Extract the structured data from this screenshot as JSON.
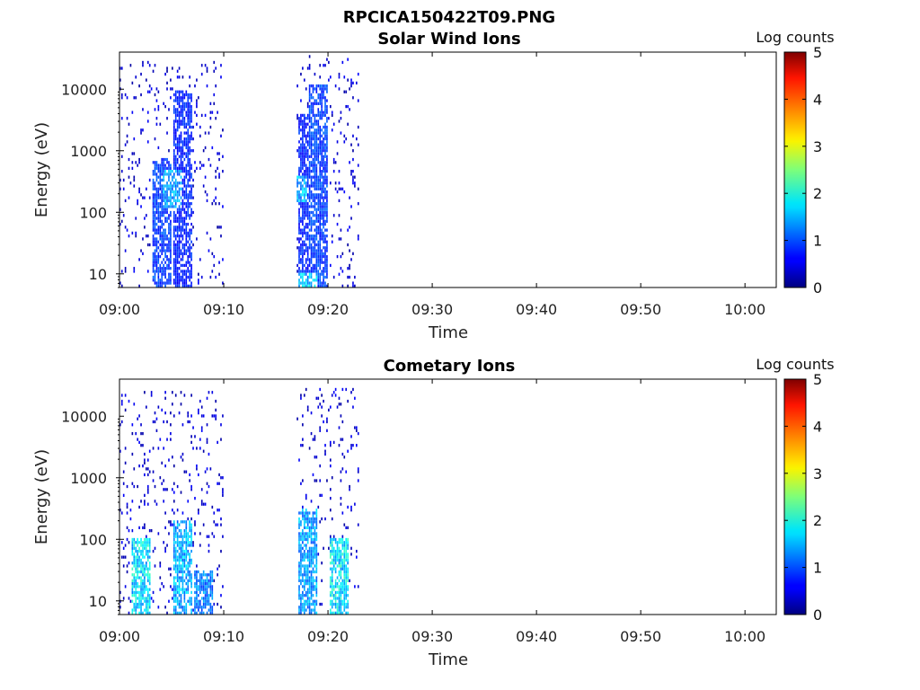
{
  "figure": {
    "title": "RPCICA150422T09.PNG"
  },
  "chart_data": [
    {
      "type": "heatmap",
      "title": "Solar Wind Ions",
      "xlabel": "Time",
      "ylabel": "Energy (eV)",
      "x_range": [
        "09:00",
        "10:03"
      ],
      "x_ticks": [
        "09:00",
        "09:10",
        "09:20",
        "09:30",
        "09:40",
        "09:50",
        "10:00"
      ],
      "y_scale": "log",
      "y_range": [
        6,
        40000
      ],
      "y_ticks": [
        "10",
        "100",
        "1000",
        "10000"
      ],
      "colorbar": {
        "label": "Log counts",
        "min": 0,
        "max": 5,
        "ticks": [
          "0",
          "1",
          "2",
          "3",
          "4",
          "5"
        ]
      },
      "activity_intervals": [
        {
          "start": "09:00",
          "end": "09:10",
          "e_min": 6,
          "e_max": 28000
        },
        {
          "start": "09:17",
          "end": "09:23",
          "e_min": 6,
          "e_max": 35000
        }
      ],
      "bursts": [
        {
          "time": "09:04",
          "e_min": 6,
          "e_max": 800,
          "level": 1.2
        },
        {
          "time": "09:06",
          "e_min": 6,
          "e_max": 10000,
          "level": 1.0
        },
        {
          "time": "09:05",
          "e_min": 120,
          "e_max": 500,
          "level": 1.8
        },
        {
          "time": "09:18",
          "e_min": 6,
          "e_max": 4000,
          "level": 1.0
        },
        {
          "time": "09:19",
          "e_min": 6,
          "e_max": 12000,
          "level": 1.2
        },
        {
          "time": "09:17",
          "e_min": 150,
          "e_max": 400,
          "level": 1.9
        },
        {
          "time": "09:18",
          "e_min": 6,
          "e_max": 10,
          "level": 2.0
        }
      ],
      "grid": false
    },
    {
      "type": "heatmap",
      "title": "Cometary Ions",
      "xlabel": "Time",
      "ylabel": "Energy (eV)",
      "x_range": [
        "09:00",
        "10:03"
      ],
      "x_ticks": [
        "09:00",
        "09:10",
        "09:20",
        "09:30",
        "09:40",
        "09:50",
        "10:00"
      ],
      "y_scale": "log",
      "y_range": [
        6,
        40000
      ],
      "y_ticks": [
        "10",
        "100",
        "1000",
        "10000"
      ],
      "colorbar": {
        "label": "Log counts",
        "min": 0,
        "max": 5,
        "ticks": [
          "0",
          "1",
          "2",
          "3",
          "4",
          "5"
        ]
      },
      "activity_intervals": [
        {
          "start": "09:00",
          "end": "09:10",
          "e_min": 6,
          "e_max": 25000
        },
        {
          "start": "09:17",
          "end": "09:23",
          "e_min": 6,
          "e_max": 28000
        }
      ],
      "bursts": [
        {
          "time": "09:02",
          "e_min": 6,
          "e_max": 100,
          "level": 2.2
        },
        {
          "time": "09:06",
          "e_min": 6,
          "e_max": 200,
          "level": 1.9
        },
        {
          "time": "09:08",
          "e_min": 6,
          "e_max": 30,
          "level": 1.6
        },
        {
          "time": "09:18",
          "e_min": 6,
          "e_max": 300,
          "level": 1.8
        },
        {
          "time": "09:21",
          "e_min": 6,
          "e_max": 100,
          "level": 2.3
        }
      ],
      "grid": false
    }
  ]
}
